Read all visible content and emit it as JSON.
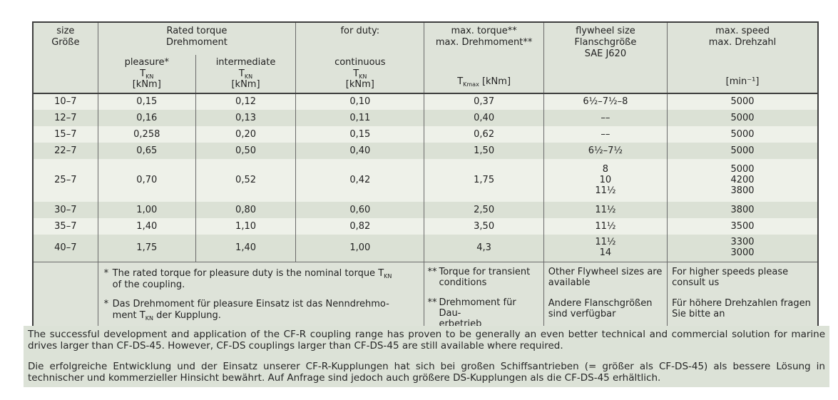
{
  "table": {
    "header": {
      "size_en": "size",
      "size_de": "Größe",
      "rated_en": "Rated torque",
      "rated_de": "Drehmoment",
      "for_duty": "for duty:",
      "pleasure": {
        "label": "pleasure*",
        "symbol": "T",
        "symbol_sub": "KN",
        "unit": "[kNm]"
      },
      "intermediate": {
        "label": "intermediate",
        "symbol": "T",
        "symbol_sub": "KN",
        "unit": "[kNm]"
      },
      "continuous": {
        "label": "continuous",
        "symbol": "T",
        "symbol_sub": "KN",
        "unit": "[kNm]"
      },
      "max_torque": {
        "en": "max. torque**",
        "de": "max. Drehmoment**",
        "symbol": "T",
        "symbol_sub": "Kmax",
        "unit": " [kNm]"
      },
      "flywheel": {
        "en": "flywheel size",
        "de": "Flanschgröße",
        "standard": "SAE J620"
      },
      "max_speed": {
        "en": "max. speed",
        "de": "max. Drehzahl",
        "unit": "[min⁻¹]"
      }
    },
    "column_keys": [
      "size",
      "pleasure",
      "intermediate",
      "continuous",
      "max-torque",
      "flywheel",
      "max-speed"
    ],
    "rows": [
      {
        "cells": [
          "10–7",
          "0,15",
          "0,12",
          "0,10",
          "0,37",
          "6½–7½–8",
          "5000"
        ]
      },
      {
        "cells": [
          "12–7",
          "0,16",
          "0,13",
          "0,11",
          "0,40",
          "––",
          "5000"
        ]
      },
      {
        "cells": [
          "15–7",
          "0,258",
          "0,20",
          "0,15",
          "0,62",
          "––",
          "5000"
        ]
      },
      {
        "cells": [
          "22–7",
          "0,65",
          "0,50",
          "0,40",
          "1,50",
          "6½–7½",
          "5000"
        ]
      },
      {
        "cells": [
          "25–7",
          "0,70",
          "0,52",
          "0,42",
          "1,75",
          [
            "8",
            "10",
            "11½"
          ],
          [
            "5000",
            "4200",
            "3800"
          ]
        ]
      },
      {
        "cells": [
          "30–7",
          "1,00",
          "0,80",
          "0,60",
          "2,50",
          "11½",
          "3800"
        ]
      },
      {
        "cells": [
          "35–7",
          "1,40",
          "1,10",
          "0,82",
          "3,50",
          "11½",
          "3500"
        ]
      },
      {
        "cells": [
          "40–7",
          "1,75",
          "1,40",
          "1,00",
          "4,3",
          [
            "11½",
            "14"
          ],
          [
            "3300",
            "3000"
          ]
        ]
      }
    ],
    "footnotes": {
      "rated": {
        "en": {
          "mark": "*",
          "line1": "The rated torque for pleasure duty is the nominal torque T",
          "line1_sub": "KN",
          "line2": "of the coupling."
        },
        "de": {
          "mark": "*",
          "line1": "Das Drehmoment für pleasure Einsatz ist das Nenndrehmo-",
          "line2a": "ment T",
          "line2_sub": "KN",
          "line2b": " der Kupplung."
        }
      },
      "max_torque": {
        "en": {
          "mark": "**",
          "text": "Torque for transient conditions"
        },
        "de": {
          "mark": "**",
          "line1": "Drehmoment für Dau-",
          "line2": "erbetrieb"
        }
      },
      "flywheel": {
        "en": "Other Flywheel sizes are available",
        "de": "Andere Flanschgrößen sind verfügbar"
      },
      "max_speed": {
        "en": "For higher speeds please consult us",
        "de": "Für höhere Drehzahlen fragen Sie bitte an"
      }
    }
  },
  "paragraphs": {
    "en": "The successful development and application of the CF-R coupling range has proven to be generally an even better technical and commercial solution for marine drives larger than CF-DS-45. However, CF-DS couplings larger than CF-DS-45 are still available where required.",
    "de": "Die erfolgreiche Entwicklung und der Einsatz unserer CF-R-Kupplungen hat sich bei großen Schiffsantrieben (= größer als CF-DS-45) als bessere Lösung in technischer und kommerzieller Hinsicht bewährt. Auf Anfrage sind jedoch auch größere DS-Kupplungen als die CF-DS-45 erhältlich."
  },
  "colors": {
    "header_bg": "#dee3d9",
    "row_light": "#eef1e9",
    "row_dark": "#dbe1d5",
    "paragraph_bg": "#dce2d7",
    "border_dark": "#3e3e3e",
    "border_light": "#6a6a6a"
  }
}
